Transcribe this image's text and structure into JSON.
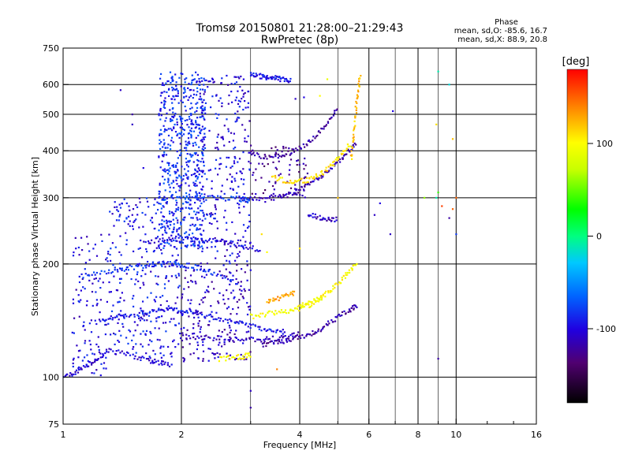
{
  "chart_data": {
    "type": "scatter",
    "title": "Tromsø 20150801 21:28:00–21:29:43",
    "subtitle": "RwPretec (8p)",
    "xlabel": "Frequency [MHz]",
    "ylabel": "Stationary phase Virtual Height [km]",
    "xscale": "log",
    "yscale": "log",
    "xlim": [
      1,
      16
    ],
    "ylim": [
      75,
      750
    ],
    "xticks": [
      1,
      2,
      4,
      6,
      8,
      10,
      16
    ],
    "xtick_labels": [
      "1",
      "2",
      "4",
      "6",
      "8",
      "10",
      "16"
    ],
    "yticks": [
      75,
      100,
      200,
      300,
      400,
      500,
      600,
      750
    ],
    "ytick_labels": [
      "75",
      "100",
      "200",
      "300",
      "400",
      "500",
      "600",
      "750"
    ],
    "grid": true,
    "phase_stats": {
      "header": "Phase",
      "o_line": "mean, sd,O: -85.6, 16.7",
      "x_line": "mean, sd,X:  88.9, 20.8"
    },
    "colorbar": {
      "label": "[deg]",
      "range": [
        -180,
        180
      ],
      "ticks": [
        100,
        0,
        -100
      ],
      "tick_labels": [
        "100",
        "0",
        "-100"
      ]
    },
    "traces": [
      {
        "x": [
          1.0,
          1.1,
          1.2,
          1.3,
          1.5,
          1.7,
          1.9
        ],
        "y": [
          100,
          104,
          110,
          118,
          114,
          110,
          108
        ],
        "phase": -105
      },
      {
        "x": [
          1.25,
          1.4,
          1.6,
          1.8,
          2.0,
          2.2,
          2.5,
          2.9,
          3.3,
          3.7
        ],
        "y": [
          142,
          145,
          148,
          152,
          150,
          148,
          143,
          138,
          134,
          132
        ],
        "phase": -95
      },
      {
        "x": [
          2.0,
          2.4,
          2.8,
          3.2,
          3.6,
          4.0
        ],
        "y": [
          128,
          127,
          126,
          126,
          127,
          130
        ],
        "phase": -110
      },
      {
        "x": [
          3.2,
          3.6,
          4.0,
          4.4,
          4.8,
          5.3,
          5.6
        ],
        "y": [
          122,
          124,
          128,
          132,
          140,
          150,
          155
        ],
        "phase": -120
      },
      {
        "x": [
          1.1,
          1.3,
          1.5,
          1.7,
          1.9,
          2.1,
          2.4,
          2.8
        ],
        "y": [
          185,
          190,
          196,
          200,
          200,
          198,
          190,
          178
        ],
        "phase": -85
      },
      {
        "x": [
          1.6,
          1.9,
          2.2,
          2.5,
          2.8,
          3.2
        ],
        "y": [
          230,
          232,
          233,
          230,
          225,
          218
        ],
        "phase": -100
      },
      {
        "x": [
          2.8,
          3.2,
          3.6,
          4.0,
          4.4,
          4.8,
          5.2,
          5.6
        ],
        "y": [
          300,
          296,
          302,
          315,
          335,
          360,
          390,
          420
        ],
        "phase": -115
      },
      {
        "x": [
          2.0,
          2.4,
          2.8,
          3.0
        ],
        "y": [
          300,
          300,
          298,
          295
        ],
        "phase": -80
      },
      {
        "x": [
          3.0,
          3.4,
          3.8,
          4.2,
          4.6,
          5.0
        ],
        "y": [
          390,
          385,
          395,
          420,
          460,
          520
        ],
        "phase": -120
      },
      {
        "x": [
          3.4,
          3.8,
          4.2,
          4.6,
          5.0,
          5.4
        ],
        "y": [
          340,
          330,
          335,
          350,
          380,
          420
        ],
        "phase": 110
      },
      {
        "x": [
          4.0,
          4.4,
          4.8,
          5.2,
          5.6
        ],
        "y": [
          155,
          160,
          170,
          185,
          200
        ],
        "phase": 100
      },
      {
        "x": [
          3.0,
          3.4,
          3.8,
          4.2,
          4.6
        ],
        "y": [
          145,
          148,
          150,
          155,
          162
        ],
        "phase": 95
      },
      {
        "x": [
          5.4,
          5.5,
          5.6,
          5.7
        ],
        "y": [
          380,
          450,
          550,
          640
        ],
        "phase": 120
      },
      {
        "x": [
          3.0,
          3.2,
          3.4,
          3.6,
          3.8
        ],
        "y": [
          640,
          630,
          625,
          620,
          615
        ],
        "phase": -95
      },
      {
        "x": [
          4.2,
          4.6,
          5.0
        ],
        "y": [
          270,
          265,
          262
        ],
        "phase": -110
      },
      {
        "x": [
          2.5,
          2.8,
          3.0
        ],
        "y": [
          112,
          113,
          115
        ],
        "phase": 100
      },
      {
        "x": [
          3.3,
          3.6,
          3.9
        ],
        "y": [
          160,
          163,
          168
        ],
        "phase": 130
      }
    ],
    "clusters": [
      {
        "x": [
          1.75,
          2.3
        ],
        "y": [
          220,
          650
        ],
        "n": 620,
        "phase": -85
      },
      {
        "x": [
          2.2,
          3.0
        ],
        "y": [
          200,
          640
        ],
        "n": 260,
        "phase": -100
      },
      {
        "x": [
          1.3,
          2.0
        ],
        "y": [
          110,
          300
        ],
        "n": 300,
        "phase": -95
      },
      {
        "x": [
          1.05,
          1.3
        ],
        "y": [
          100,
          240
        ],
        "n": 110,
        "phase": -100
      },
      {
        "x": [
          2.0,
          3.0
        ],
        "y": [
          110,
          200
        ],
        "n": 200,
        "phase": -110
      },
      {
        "x": [
          3.0,
          4.2
        ],
        "y": [
          300,
          420
        ],
        "n": 80,
        "phase": -125
      }
    ],
    "scattered": [
      {
        "x": 1.4,
        "y": 580,
        "phase": -110
      },
      {
        "x": 1.5,
        "y": 500,
        "phase": -120
      },
      {
        "x": 1.5,
        "y": 470,
        "phase": -110
      },
      {
        "x": 1.6,
        "y": 360,
        "phase": -100
      },
      {
        "x": 1.5,
        "y": 270,
        "phase": -110
      },
      {
        "x": 3.0,
        "y": 92,
        "phase": -110
      },
      {
        "x": 3.0,
        "y": 83,
        "phase": -120
      },
      {
        "x": 3.5,
        "y": 105,
        "phase": 140
      },
      {
        "x": 3.3,
        "y": 215,
        "phase": 100
      },
      {
        "x": 3.2,
        "y": 240,
        "phase": 110
      },
      {
        "x": 4.0,
        "y": 220,
        "phase": 110
      },
      {
        "x": 6.2,
        "y": 270,
        "phase": -110
      },
      {
        "x": 6.4,
        "y": 290,
        "phase": -100
      },
      {
        "x": 6.8,
        "y": 240,
        "phase": -110
      },
      {
        "x": 6.9,
        "y": 510,
        "phase": -100
      },
      {
        "x": 8.3,
        "y": 300,
        "phase": 60
      },
      {
        "x": 8.9,
        "y": 300,
        "phase": -10
      },
      {
        "x": 9.0,
        "y": 310,
        "phase": 40
      },
      {
        "x": 9.2,
        "y": 285,
        "phase": 160
      },
      {
        "x": 9.6,
        "y": 265,
        "phase": -120
      },
      {
        "x": 9.8,
        "y": 280,
        "phase": 150
      },
      {
        "x": 9.6,
        "y": 600,
        "phase": -20
      },
      {
        "x": 9.0,
        "y": 650,
        "phase": -10
      },
      {
        "x": 9.8,
        "y": 430,
        "phase": 120
      },
      {
        "x": 10.0,
        "y": 240,
        "phase": -80
      },
      {
        "x": 10.0,
        "y": 300,
        "phase": 150
      },
      {
        "x": 9.0,
        "y": 112,
        "phase": -120
      },
      {
        "x": 8.9,
        "y": 470,
        "phase": 110
      },
      {
        "x": 5.0,
        "y": 300,
        "phase": 120
      },
      {
        "x": 4.5,
        "y": 560,
        "phase": 100
      },
      {
        "x": 4.7,
        "y": 620,
        "phase": 90
      },
      {
        "x": 3.9,
        "y": 550,
        "phase": -110
      },
      {
        "x": 4.1,
        "y": 555,
        "phase": -100
      }
    ],
    "colors": {
      "axis": "#000000",
      "grid": "#000000",
      "background": "#ffffff"
    }
  }
}
